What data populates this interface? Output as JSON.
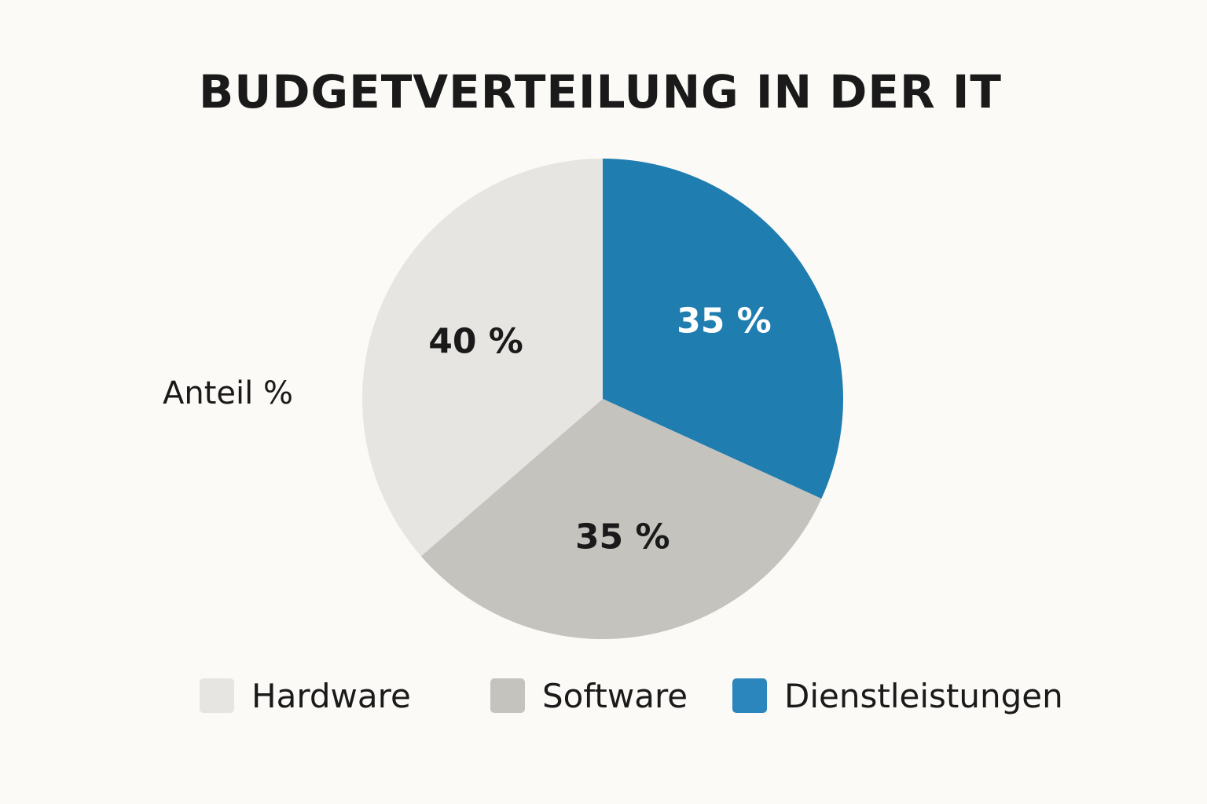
{
  "chart_data": {
    "type": "pie",
    "title": "BUDGETVERTEILUNG IN DER IT",
    "ylabel": "Anteil %",
    "slices": [
      {
        "name": "Dienstleistungen",
        "value": 35,
        "label": "35 %",
        "color": "#1f7db0",
        "label_color": "#ffffff"
      },
      {
        "name": "Software",
        "value": 35,
        "label": "35 %",
        "color": "#c5c3be",
        "label_color": "#1a1a1a"
      },
      {
        "name": "Hardware",
        "value": 40,
        "label": "40 %",
        "color": "#e6e5e1",
        "label_color": "#1a1a1a"
      }
    ],
    "legend": {
      "placement": "bottom",
      "items": [
        {
          "name": "Hardware",
          "color": "#e6e5e1"
        },
        {
          "name": "Software",
          "color": "#c5c3be"
        },
        {
          "name": "Dienstleistungen",
          "color": "#2b86bd"
        }
      ]
    },
    "colors": {
      "background": "#fbfaf7",
      "text": "#1a1a1a"
    }
  }
}
